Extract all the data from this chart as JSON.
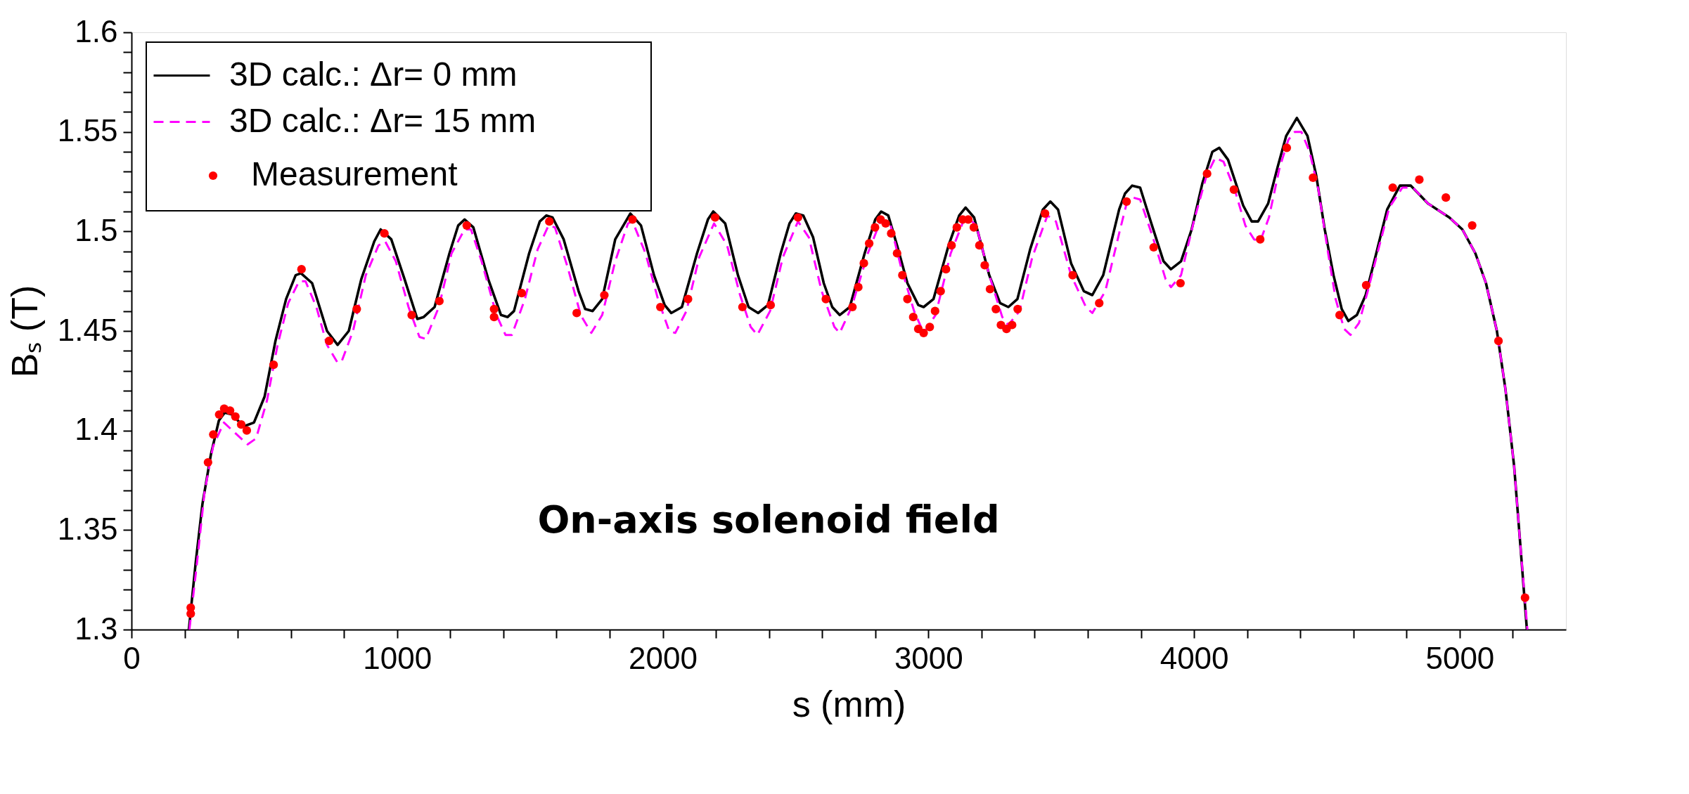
{
  "chart_data": {
    "type": "line",
    "xlabel": "s (mm)",
    "ylabel": "Bₛ (T)",
    "xlim": [
      0,
      5400
    ],
    "ylim": [
      1.3,
      1.6
    ],
    "xticks": [
      0,
      {
        "value": 200,
        "label": null
      },
      {
        "value": 400,
        "label": null
      },
      {
        "value": 600,
        "label": null
      },
      {
        "value": 800,
        "label": null
      },
      1000,
      {
        "value": 1200,
        "label": null
      },
      {
        "value": 1400,
        "label": null
      },
      {
        "value": 1600,
        "label": null
      },
      {
        "value": 1800,
        "label": null
      },
      2000,
      {
        "value": 2200,
        "label": null
      },
      {
        "value": 2400,
        "label": null
      },
      {
        "value": 2600,
        "label": null
      },
      {
        "value": 2800,
        "label": null
      },
      3000,
      {
        "value": 3200,
        "label": null
      },
      {
        "value": 3400,
        "label": null
      },
      {
        "value": 3600,
        "label": null
      },
      {
        "value": 3800,
        "label": null
      },
      4000,
      {
        "value": 4200,
        "label": null
      },
      {
        "value": 4400,
        "label": null
      },
      {
        "value": 4600,
        "label": null
      },
      {
        "value": 4800,
        "label": null
      },
      5000,
      {
        "value": 5200,
        "label": null
      }
    ],
    "yticks": [
      1.3,
      {
        "value": 1.31,
        "label": null
      },
      {
        "value": 1.32,
        "label": null
      },
      {
        "value": 1.33,
        "label": null
      },
      {
        "value": 1.34,
        "label": null
      },
      1.35,
      {
        "value": 1.36,
        "label": null
      },
      {
        "value": 1.37,
        "label": null
      },
      {
        "value": 1.38,
        "label": null
      },
      {
        "value": 1.39,
        "label": null
      },
      1.4,
      {
        "value": 1.41,
        "label": null
      },
      {
        "value": 1.42,
        "label": null
      },
      {
        "value": 1.43,
        "label": null
      },
      {
        "value": 1.44,
        "label": null
      },
      1.45,
      {
        "value": 1.46,
        "label": null
      },
      {
        "value": 1.47,
        "label": null
      },
      {
        "value": 1.48,
        "label": null
      },
      {
        "value": 1.49,
        "label": null
      },
      1.5,
      {
        "value": 1.51,
        "label": null
      },
      {
        "value": 1.52,
        "label": null
      },
      {
        "value": 1.53,
        "label": null
      },
      {
        "value": 1.54,
        "label": null
      },
      1.55,
      {
        "value": 1.56,
        "label": null
      },
      {
        "value": 1.57,
        "label": null
      },
      {
        "value": 1.58,
        "label": null
      },
      {
        "value": 1.59,
        "label": null
      },
      1.6
    ],
    "grid": false,
    "legend": "top left",
    "annotations": [
      "On-axis solenoid field"
    ],
    "series": [
      {
        "name": "3D calc.: Δr= 0 mm",
        "type": "line",
        "line_style": "solid",
        "color": "#000000",
        "x": [
          216,
          242,
          267,
          299,
          329,
          351,
          380,
          421,
          461,
          501,
          542,
          582,
          618,
          638,
          680,
          736,
          776,
          818,
          865,
          914,
          938,
          978,
          1028,
          1076,
          1100,
          1141,
          1197,
          1230,
          1254,
          1287,
          1343,
          1391,
          1416,
          1440,
          1497,
          1537,
          1562,
          1585,
          1627,
          1683,
          1708,
          1736,
          1772,
          1821,
          1878,
          1918,
          1967,
          2007,
          2032,
          2072,
          2129,
          2170,
          2190,
          2235,
          2283,
          2323,
          2359,
          2396,
          2444,
          2477,
          2501,
          2529,
          2566,
          2606,
          2638,
          2666,
          2704,
          2760,
          2800,
          2822,
          2849,
          2882,
          2921,
          2962,
          2982,
          3019,
          3076,
          3116,
          3140,
          3172,
          3229,
          3270,
          3301,
          3335,
          3383,
          3431,
          3459,
          3488,
          3537,
          3585,
          3617,
          3658,
          3718,
          3740,
          3767,
          3797,
          3837,
          3885,
          3913,
          3951,
          3991,
          4031,
          4069,
          4095,
          4128,
          4185,
          4217,
          4241,
          4279,
          4314,
          4347,
          4387,
          4427,
          4460,
          4492,
          4525,
          4556,
          4581,
          4613,
          4646,
          4686,
          4727,
          4775,
          4816,
          4881,
          4961,
          5010,
          5059,
          5099,
          5140,
          5172,
          5205,
          5228,
          5253
        ],
        "values": [
          1.3,
          1.334,
          1.363,
          1.388,
          1.405,
          1.409,
          1.408,
          1.402,
          1.404,
          1.417,
          1.445,
          1.466,
          1.478,
          1.479,
          1.474,
          1.45,
          1.443,
          1.45,
          1.476,
          1.495,
          1.501,
          1.496,
          1.476,
          1.456,
          1.457,
          1.462,
          1.489,
          1.503,
          1.506,
          1.502,
          1.476,
          1.458,
          1.457,
          1.46,
          1.489,
          1.505,
          1.508,
          1.507,
          1.496,
          1.47,
          1.461,
          1.46,
          1.466,
          1.496,
          1.509,
          1.503,
          1.478,
          1.463,
          1.459,
          1.462,
          1.489,
          1.506,
          1.51,
          1.504,
          1.478,
          1.462,
          1.459,
          1.463,
          1.489,
          1.504,
          1.509,
          1.508,
          1.497,
          1.474,
          1.462,
          1.458,
          1.462,
          1.489,
          1.506,
          1.51,
          1.508,
          1.493,
          1.474,
          1.463,
          1.462,
          1.466,
          1.493,
          1.508,
          1.512,
          1.507,
          1.478,
          1.464,
          1.462,
          1.466,
          1.491,
          1.511,
          1.515,
          1.511,
          1.484,
          1.47,
          1.468,
          1.478,
          1.511,
          1.519,
          1.523,
          1.522,
          1.505,
          1.485,
          1.481,
          1.485,
          1.501,
          1.524,
          1.54,
          1.542,
          1.536,
          1.513,
          1.505,
          1.505,
          1.514,
          1.532,
          1.548,
          1.557,
          1.548,
          1.528,
          1.501,
          1.478,
          1.461,
          1.455,
          1.458,
          1.468,
          1.489,
          1.511,
          1.523,
          1.523,
          1.514,
          1.507,
          1.501,
          1.489,
          1.474,
          1.45,
          1.421,
          1.382,
          1.343,
          1.3
        ]
      },
      {
        "name": "3D calc.: Δr= 15 mm",
        "type": "line",
        "line_style": "dashed",
        "color": "#ff00ff",
        "x": [
          218,
          247,
          275,
          307,
          348,
          380,
          437,
          469,
          510,
          550,
          590,
          631,
          655,
          696,
          736,
          776,
          792,
          834,
          882,
          930,
          955,
          995,
          1043,
          1084,
          1108,
          1157,
          1205,
          1254,
          1278,
          1318,
          1374,
          1408,
          1432,
          1481,
          1529,
          1570,
          1594,
          1642,
          1691,
          1731,
          1772,
          1821,
          1869,
          1886,
          1935,
          1982,
          2024,
          2047,
          2089,
          2137,
          2193,
          2242,
          2291,
          2331,
          2356,
          2404,
          2452,
          2509,
          2550,
          2598,
          2646,
          2666,
          2711,
          2772,
          2822,
          2858,
          2897,
          2946,
          2982,
          3027,
          3084,
          3140,
          3180,
          3229,
          3278,
          3301,
          3343,
          3391,
          3448,
          3480,
          3537,
          3593,
          3617,
          3666,
          3718,
          3748,
          3771,
          3797,
          3845,
          3893,
          3913,
          3951,
          3999,
          4047,
          4080,
          4111,
          4153,
          4193,
          4226,
          4249,
          4282,
          4322,
          4355,
          4379,
          4404,
          4435,
          4468,
          4500,
          4533,
          4565,
          4589,
          4621,
          4654,
          4694,
          4735,
          4784,
          4824,
          4881,
          4961,
          5010,
          5059,
          5099,
          5140,
          5172,
          5205,
          5228,
          5255
        ],
        "values": [
          1.3,
          1.334,
          1.369,
          1.392,
          1.404,
          1.4,
          1.393,
          1.396,
          1.415,
          1.443,
          1.464,
          1.475,
          1.475,
          1.462,
          1.443,
          1.434,
          1.435,
          1.45,
          1.478,
          1.493,
          1.495,
          1.485,
          1.462,
          1.447,
          1.446,
          1.462,
          1.489,
          1.501,
          1.501,
          1.485,
          1.458,
          1.448,
          1.448,
          1.466,
          1.491,
          1.503,
          1.502,
          1.482,
          1.458,
          1.449,
          1.458,
          1.485,
          1.504,
          1.505,
          1.489,
          1.466,
          1.45,
          1.449,
          1.46,
          1.487,
          1.504,
          1.493,
          1.468,
          1.452,
          1.448,
          1.46,
          1.487,
          1.505,
          1.497,
          1.47,
          1.452,
          1.449,
          1.462,
          1.489,
          1.506,
          1.503,
          1.482,
          1.46,
          1.449,
          1.458,
          1.489,
          1.508,
          1.503,
          1.478,
          1.457,
          1.453,
          1.46,
          1.487,
          1.508,
          1.505,
          1.478,
          1.462,
          1.459,
          1.47,
          1.499,
          1.515,
          1.517,
          1.516,
          1.497,
          1.476,
          1.472,
          1.478,
          1.505,
          1.528,
          1.537,
          1.535,
          1.521,
          1.503,
          1.496,
          1.495,
          1.507,
          1.532,
          1.546,
          1.55,
          1.55,
          1.54,
          1.521,
          1.493,
          1.466,
          1.451,
          1.448,
          1.454,
          1.47,
          1.491,
          1.512,
          1.522,
          1.522,
          1.514,
          1.507,
          1.501,
          1.489,
          1.474,
          1.45,
          1.421,
          1.382,
          1.343,
          1.3
        ]
      },
      {
        "name": "Measurement",
        "type": "scatter",
        "marker": "circle",
        "color": "#ff0000",
        "x": [
          223,
          223,
          288,
          308,
          330,
          349,
          371,
          391,
          413,
          434,
          535,
          640,
          744,
          848,
          952,
          1055,
          1159,
          1262,
          1365,
          1365,
          1469,
          1573,
          1676,
          1780,
          1886,
          1991,
          2095,
          2197,
          2300,
          2406,
          2509,
          2614,
          2714,
          2736,
          2757,
          2777,
          2799,
          2820,
          2839,
          2860,
          2882,
          2902,
          2921,
          2943,
          2962,
          2982,
          3005,
          3025,
          3046,
          3066,
          3087,
          3107,
          3129,
          3150,
          3171,
          3192,
          3212,
          3232,
          3254,
          3273,
          3294,
          3315,
          3336,
          3439,
          3543,
          3643,
          3746,
          3848,
          3949,
          4049,
          4150,
          4249,
          4349,
          4448,
          4548,
          4648,
          4748,
          4848,
          4948,
          5047,
          5146,
          5246
        ],
        "values": [
          1.311,
          1.308,
          1.384,
          1.398,
          1.408,
          1.411,
          1.41,
          1.407,
          1.403,
          1.4,
          1.433,
          1.481,
          1.445,
          1.461,
          1.499,
          1.458,
          1.465,
          1.503,
          1.461,
          1.457,
          1.469,
          1.505,
          1.459,
          1.468,
          1.506,
          1.462,
          1.466,
          1.507,
          1.462,
          1.463,
          1.507,
          1.466,
          1.462,
          1.472,
          1.484,
          1.494,
          1.502,
          1.506,
          1.504,
          1.499,
          1.489,
          1.478,
          1.466,
          1.457,
          1.451,
          1.449,
          1.452,
          1.46,
          1.47,
          1.481,
          1.493,
          1.502,
          1.506,
          1.506,
          1.502,
          1.493,
          1.483,
          1.471,
          1.461,
          1.453,
          1.451,
          1.453,
          1.461,
          1.509,
          1.478,
          1.464,
          1.515,
          1.492,
          1.474,
          1.529,
          1.521,
          1.496,
          1.542,
          1.527,
          1.458,
          1.473,
          1.522,
          1.526,
          1.517,
          1.503,
          1.445,
          1.316
        ]
      }
    ]
  }
}
